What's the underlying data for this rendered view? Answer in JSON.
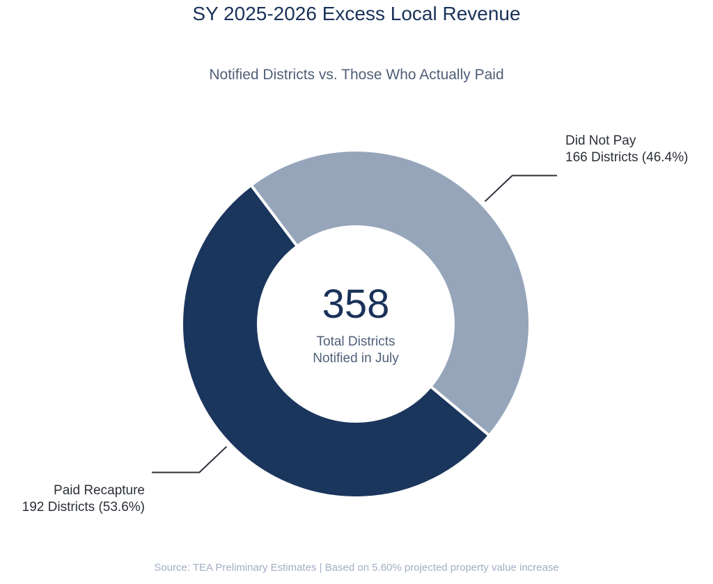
{
  "chart_data": {
    "type": "pie",
    "variant": "donut",
    "title": "SY 2025-2026 Excess Local Revenue",
    "subtitle": "Notified Districts vs. Those Who Actually Paid",
    "center": {
      "value": "358",
      "label_line1": "Total Districts",
      "label_line2": "Notified in July"
    },
    "total": 358,
    "slices": [
      {
        "name": "Did Not Pay",
        "value": 166,
        "percent": 46.4,
        "label": "166 Districts (46.4%)",
        "color": "#96a5ba"
      },
      {
        "name": "Paid Recapture",
        "value": 192,
        "percent": 53.6,
        "label": "192 Districts (53.6%)",
        "color": "#1b365d"
      }
    ],
    "source": "Source: TEA Preliminary Estimates | Based on 5.60% projected property value increase"
  }
}
